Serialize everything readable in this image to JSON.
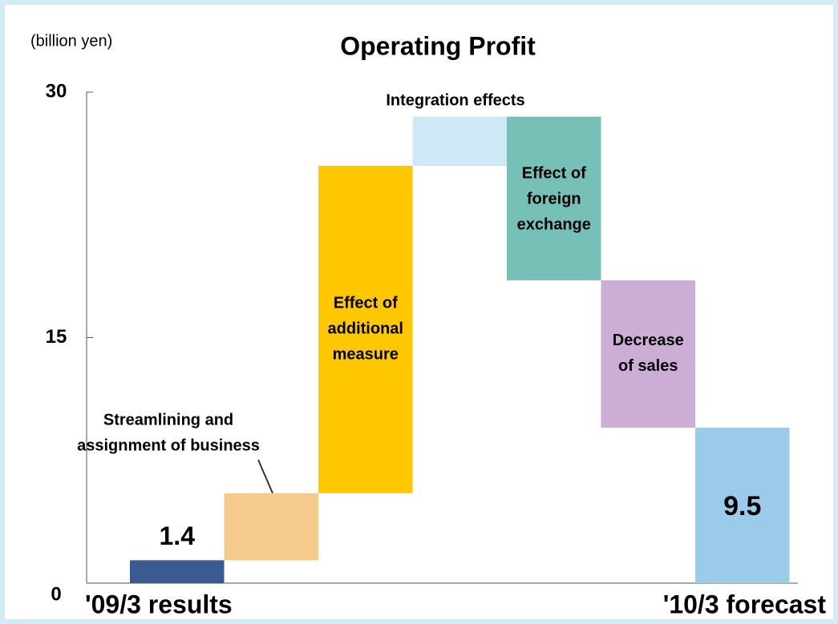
{
  "chart_data": {
    "type": "waterfall",
    "title": "Operating Profit",
    "y_label": "(billion yen)",
    "categories": [
      "'09/3 results",
      null,
      null,
      null,
      null,
      null,
      "'10/3 forecast"
    ],
    "bar_labels": [
      null,
      [
        "Streamlining and",
        "assignment of business"
      ],
      [
        "Effect of",
        "additional",
        "measure"
      ],
      [
        "Integration effects"
      ],
      [
        "Effect of",
        "foreign",
        "exchange"
      ],
      [
        "Decrease",
        "of sales"
      ],
      null
    ],
    "measures": [
      "absolute",
      "relative",
      "relative",
      "relative",
      "relative",
      "relative",
      "total"
    ],
    "values": [
      1.4,
      4.1,
      20.0,
      3.0,
      -10.0,
      -9.0,
      9.5
    ],
    "colors": [
      "#3b5b90",
      "#f4cb8c",
      "#ffc700",
      "#cfe8f6",
      "#76c0b8",
      "#cbadd6",
      "#9acbe8"
    ],
    "ylim": [
      0,
      30
    ],
    "yticks": [
      0,
      15,
      30
    ]
  }
}
